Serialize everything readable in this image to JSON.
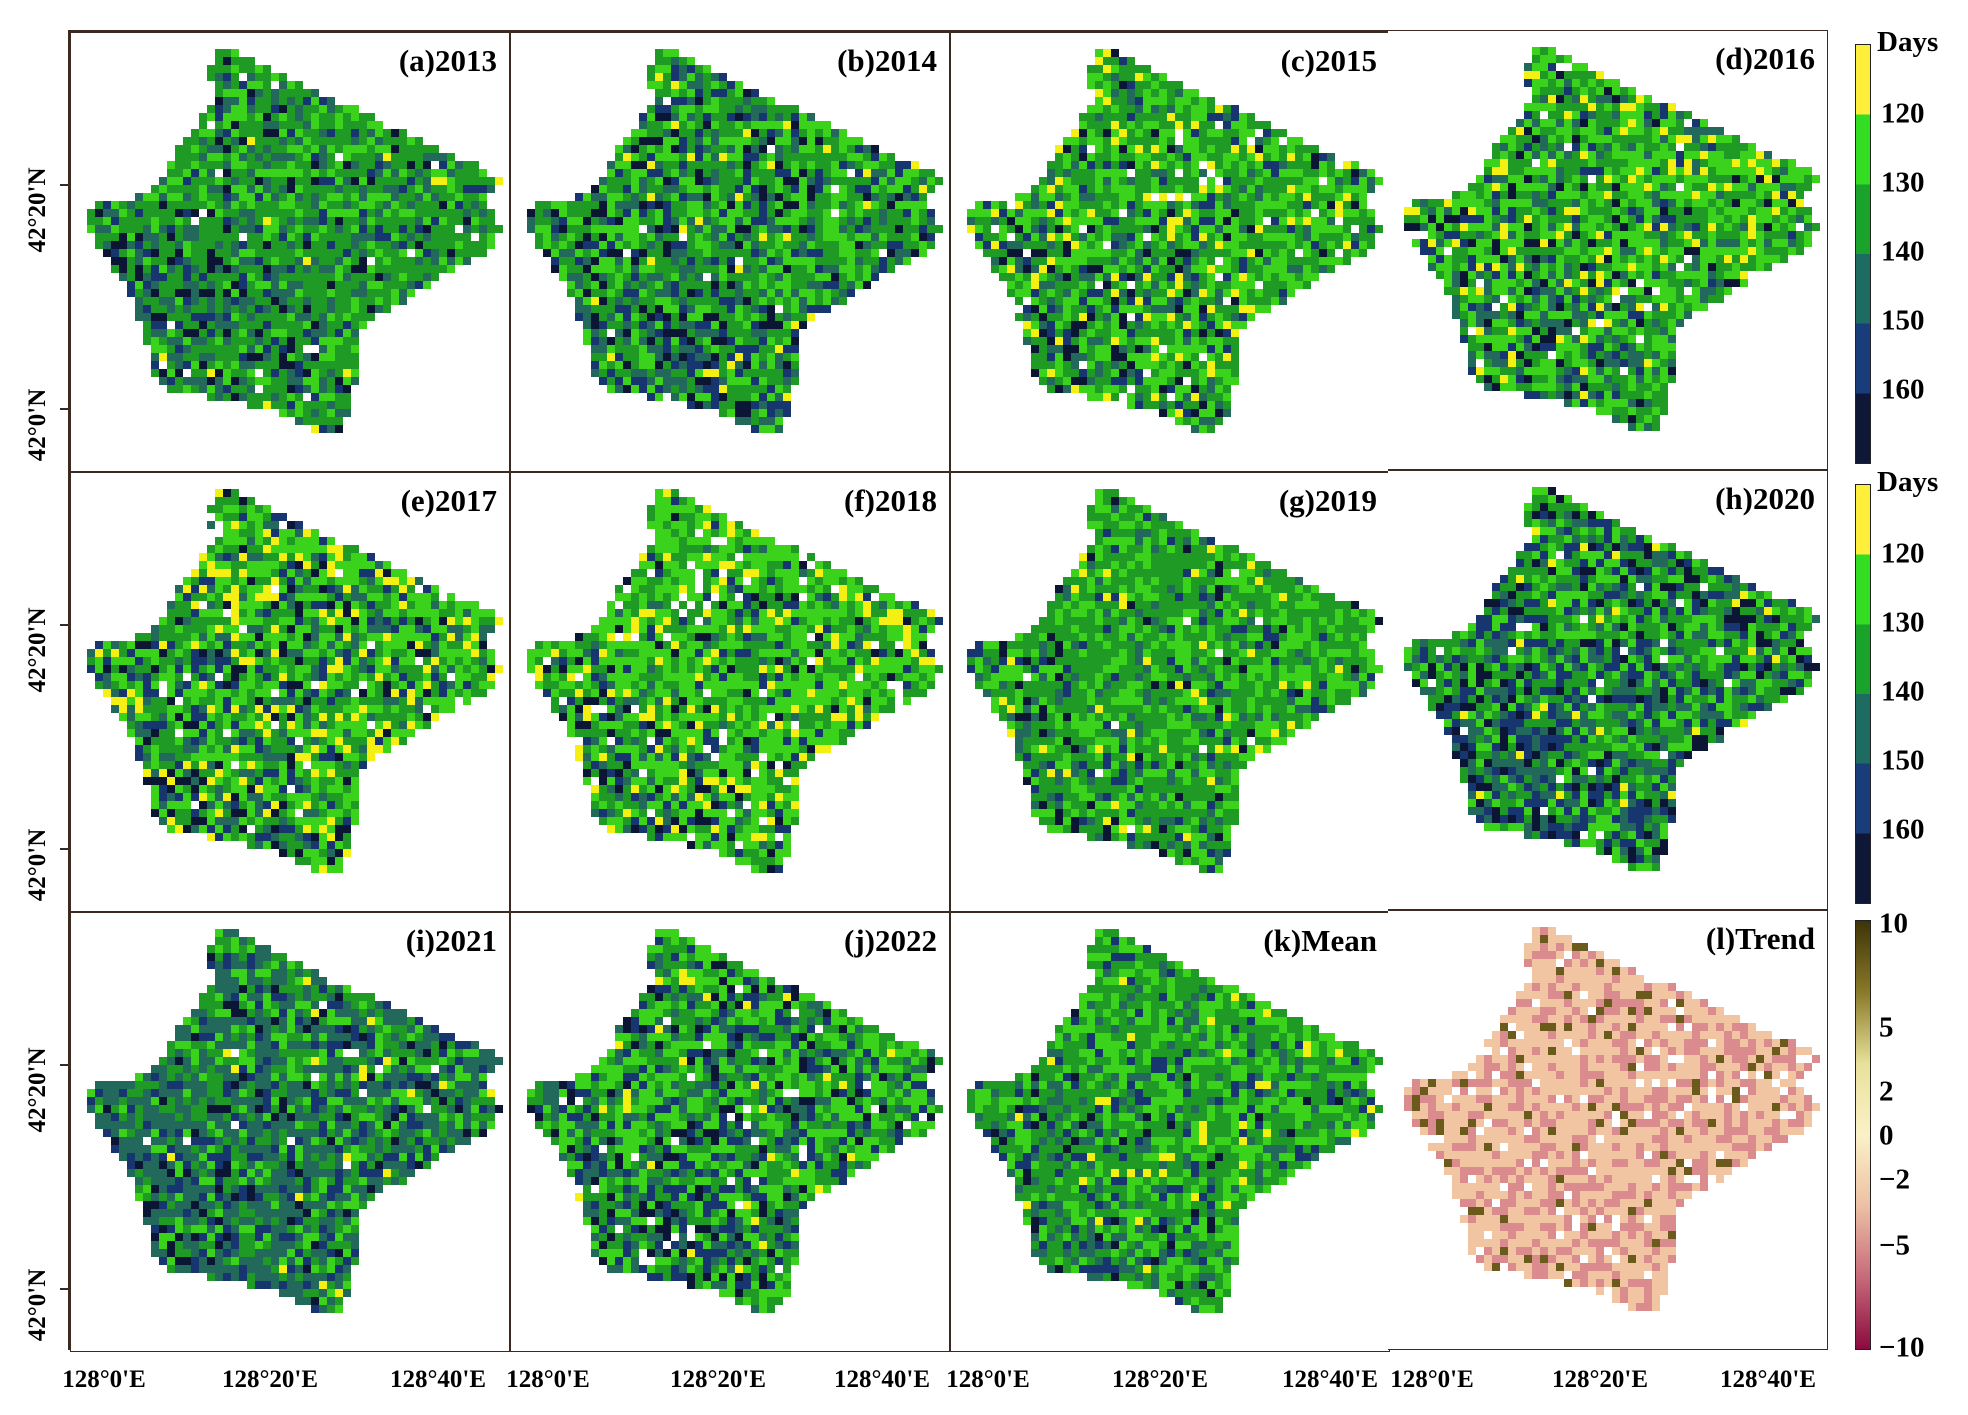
{
  "panels": [
    {
      "label": "(a)2013",
      "mix": [
        0.06,
        0.05,
        0.17,
        0.52,
        0.2
      ],
      "white": 0.02
    },
    {
      "label": "(b)2014",
      "mix": [
        0.08,
        0.12,
        0.15,
        0.35,
        0.3
      ],
      "white": 0.01
    },
    {
      "label": "(c)2015",
      "mix": [
        0.03,
        0.06,
        0.08,
        0.4,
        0.43
      ],
      "white": 0.03
    },
    {
      "label": "(d)2016",
      "mix": [
        0.04,
        0.06,
        0.12,
        0.33,
        0.45
      ],
      "white": 0.02
    },
    {
      "label": "(e)2017",
      "mix": [
        0.05,
        0.07,
        0.1,
        0.28,
        0.5
      ],
      "white": 0.03
    },
    {
      "label": "(f)2018",
      "mix": [
        0.03,
        0.06,
        0.04,
        0.32,
        0.55
      ],
      "white": 0.05
    },
    {
      "label": "(g)2019",
      "mix": [
        0.02,
        0.04,
        0.07,
        0.52,
        0.35
      ],
      "white": 0.01
    },
    {
      "label": "(h)2020",
      "mix": [
        0.1,
        0.18,
        0.14,
        0.3,
        0.28
      ],
      "white": 0.02
    },
    {
      "label": "(i)2021",
      "mix": [
        0.05,
        0.12,
        0.4,
        0.25,
        0.18
      ],
      "white": 0.01
    },
    {
      "label": "(j)2022",
      "mix": [
        0.06,
        0.13,
        0.14,
        0.3,
        0.37
      ],
      "white": 0.04
    },
    {
      "label": "(k)Mean",
      "mix": [
        0.01,
        0.07,
        0.12,
        0.45,
        0.35
      ],
      "white": 0.0
    },
    {
      "label": "(l)Trend",
      "trend": true,
      "white": 0.05
    }
  ],
  "axes": {
    "y_ticks": [
      "42°20'N",
      "42°0'N"
    ],
    "x_ticks": [
      "128°0'E",
      "128°20'E",
      "128°40'E"
    ]
  },
  "legend_days": {
    "title": "Days",
    "labels": [
      "120",
      "130",
      "140",
      "150",
      "160"
    ],
    "colors": [
      "#ffef3a",
      "#33dd22",
      "#19a32b",
      "#1e6b62",
      "#183d7a",
      "#0e1736"
    ]
  },
  "legend_days_2": {
    "title": "Days",
    "labels": [
      "120",
      "130",
      "140",
      "150",
      "160"
    ]
  },
  "legend_trend": {
    "labels": [
      "10",
      "5",
      "2",
      "0",
      "−2",
      "−5",
      "−10"
    ],
    "values": [
      10,
      5,
      2,
      0,
      -2,
      -5,
      -10
    ],
    "colors": [
      "#3e3308",
      "#8a7a2a",
      "#e8e19a",
      "#fbf1c8",
      "#ecc0a4",
      "#c76a7a",
      "#8b0a3f"
    ]
  },
  "map_colors": {
    "yellow": "#f5f014",
    "bright_green": "#3ad21a",
    "mid_green": "#1f9a24",
    "teal": "#22695c",
    "navy": "#17356f",
    "dark_navy": "#0b1534",
    "trend_base": "#f1c4a2",
    "trend_pink": "#d98b8e",
    "trend_dark": "#6b5a1b",
    "trend_white": "#ffffff"
  }
}
